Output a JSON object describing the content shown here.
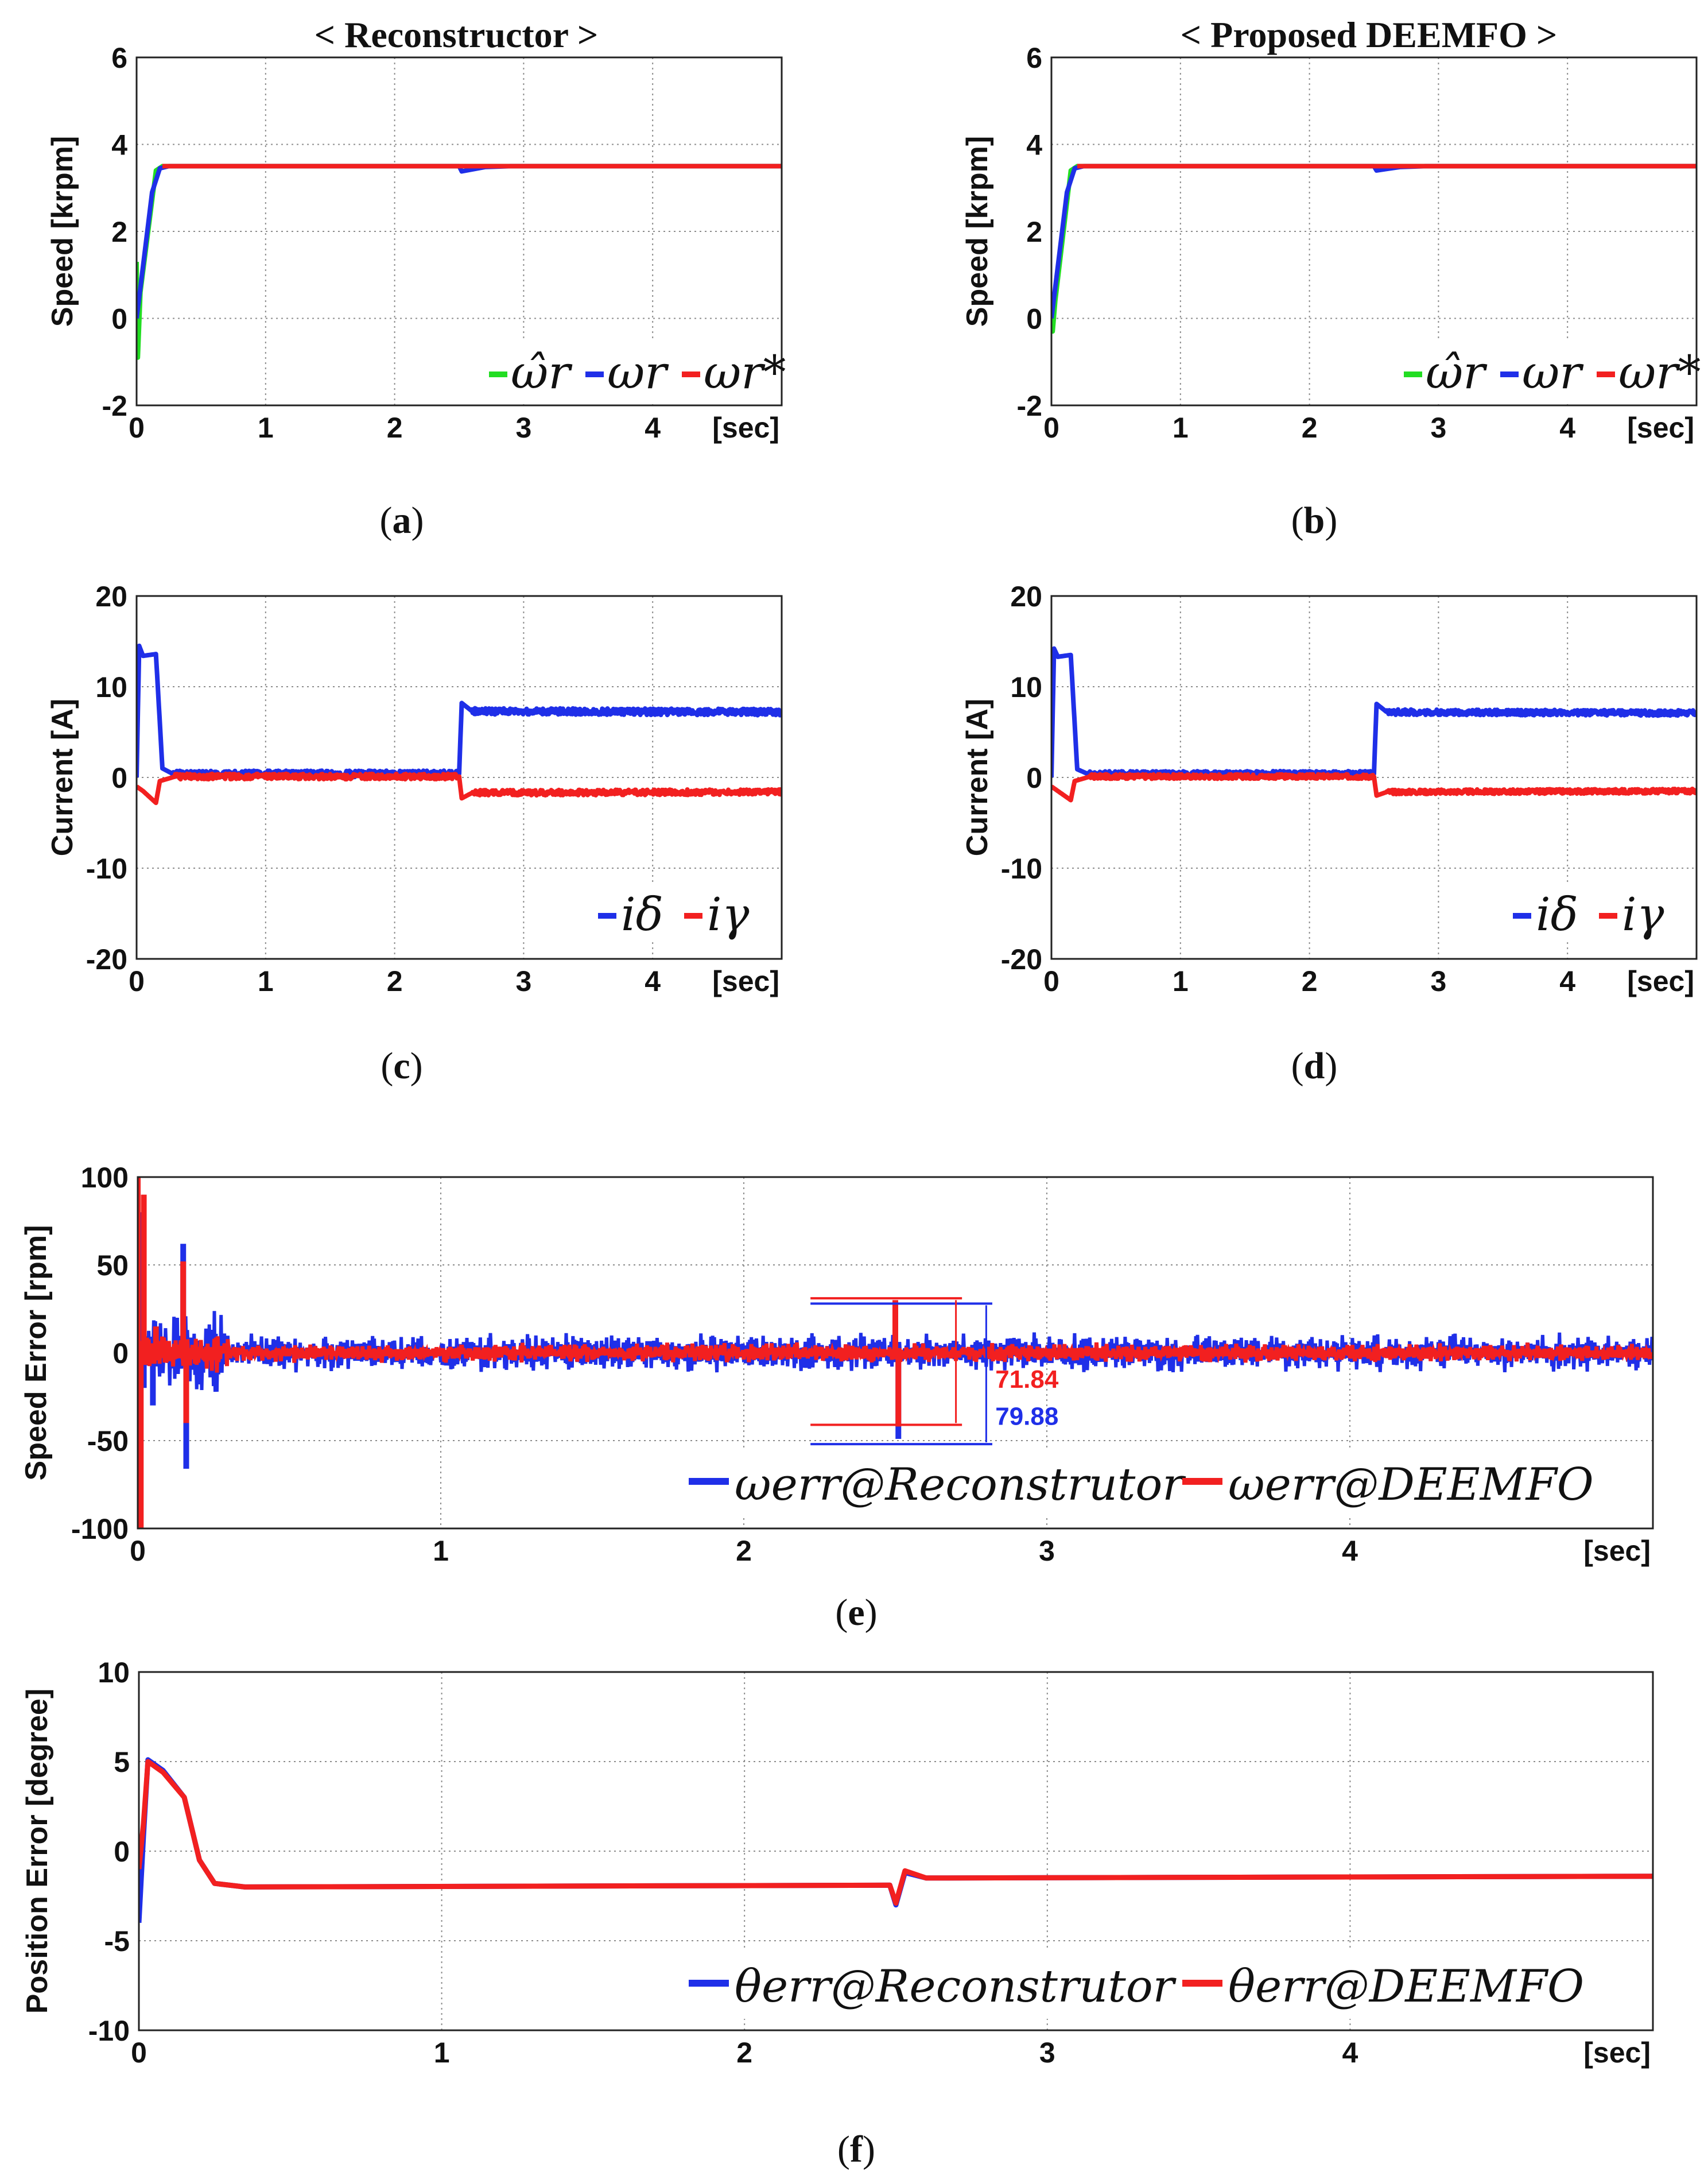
{
  "figure": {
    "title_left": "< Reconstructor >",
    "title_right": "< Proposed DEEMFO >",
    "panel_labels": [
      "a",
      "b",
      "c",
      "d",
      "e",
      "f"
    ],
    "colors": {
      "green": "#22dd22",
      "blue": "#1f2fe8",
      "red": "#f22020",
      "grid": "#8c8c8c",
      "axis": "#222222"
    }
  },
  "chart_data": [
    {
      "id": "a",
      "type": "line",
      "title": "< Reconstructor >",
      "ylabel": "Speed [krpm]",
      "xlabel": "[sec]",
      "xlim": [
        0,
        5
      ],
      "ylim": [
        -2,
        6
      ],
      "xticks": [
        "0",
        "1",
        "2",
        "3",
        "4"
      ],
      "yticks": [
        "-2",
        "0",
        "2",
        "4",
        "6"
      ],
      "legend": [
        "ω̂r",
        "ωr",
        "ωr*"
      ],
      "legend_position": "bottom-right",
      "series": [
        {
          "name": "ω̂r (estimated speed)",
          "color": "green",
          "points": [
            [
              0,
              1.3
            ],
            [
              0.01,
              -0.9
            ],
            [
              0.03,
              0.6
            ],
            [
              0.15,
              3.4
            ],
            [
              0.2,
              3.5
            ],
            [
              5,
              3.5
            ]
          ]
        },
        {
          "name": "ωr (actual speed)",
          "color": "blue",
          "points": [
            [
              0,
              0
            ],
            [
              0.05,
              1.2
            ],
            [
              0.12,
              2.9
            ],
            [
              0.18,
              3.45
            ],
            [
              0.25,
              3.5
            ],
            [
              2.5,
              3.5
            ],
            [
              2.52,
              3.38
            ],
            [
              2.7,
              3.48
            ],
            [
              2.9,
              3.5
            ],
            [
              5,
              3.5
            ]
          ]
        },
        {
          "name": "ωr* (reference speed)",
          "color": "red",
          "points": [
            [
              0.2,
              3.5
            ],
            [
              5,
              3.5
            ]
          ]
        }
      ]
    },
    {
      "id": "b",
      "type": "line",
      "title": "< Proposed DEEMFO >",
      "ylabel": "Speed [krpm]",
      "xlabel": "[sec]",
      "xlim": [
        0,
        5
      ],
      "ylim": [
        -2,
        6
      ],
      "xticks": [
        "0",
        "1",
        "2",
        "3",
        "4"
      ],
      "yticks": [
        "-2",
        "0",
        "2",
        "4",
        "6"
      ],
      "legend": [
        "ω̂r",
        "ωr",
        "ωr*"
      ],
      "legend_position": "bottom-right",
      "series": [
        {
          "name": "ω̂r (estimated speed)",
          "color": "green",
          "points": [
            [
              0,
              0.3
            ],
            [
              0.01,
              -0.3
            ],
            [
              0.03,
              0.4
            ],
            [
              0.15,
              3.4
            ],
            [
              0.2,
              3.5
            ],
            [
              5,
              3.5
            ]
          ]
        },
        {
          "name": "ωr (actual speed)",
          "color": "blue",
          "points": [
            [
              0,
              0
            ],
            [
              0.05,
              1.2
            ],
            [
              0.12,
              2.9
            ],
            [
              0.18,
              3.45
            ],
            [
              0.25,
              3.5
            ],
            [
              2.5,
              3.5
            ],
            [
              2.52,
              3.4
            ],
            [
              2.7,
              3.48
            ],
            [
              2.9,
              3.5
            ],
            [
              5,
              3.5
            ]
          ]
        },
        {
          "name": "ωr* (reference speed)",
          "color": "red",
          "points": [
            [
              0.2,
              3.5
            ],
            [
              5,
              3.5
            ]
          ]
        }
      ]
    },
    {
      "id": "c",
      "type": "line",
      "ylabel": "Current [A]",
      "xlabel": "[sec]",
      "xlim": [
        0,
        5
      ],
      "ylim": [
        -20,
        20
      ],
      "xticks": [
        "0",
        "1",
        "2",
        "3",
        "4"
      ],
      "yticks": [
        "-20",
        "-10",
        "0",
        "10",
        "20"
      ],
      "legend": [
        "iδ",
        "iγ"
      ],
      "legend_position": "bottom-right",
      "series": [
        {
          "name": "iδ",
          "color": "blue",
          "noise": 0.35,
          "points": [
            [
              0,
              0
            ],
            [
              0.02,
              14.5
            ],
            [
              0.05,
              13.4
            ],
            [
              0.15,
              13.6
            ],
            [
              0.2,
              1.0
            ],
            [
              0.28,
              0.4
            ],
            [
              2.5,
              0.4
            ],
            [
              2.52,
              8.2
            ],
            [
              2.6,
              7.3
            ],
            [
              5,
              7.2
            ]
          ]
        },
        {
          "name": "iγ",
          "color": "red",
          "noise": 0.3,
          "points": [
            [
              0,
              -1.0
            ],
            [
              0.05,
              -1.5
            ],
            [
              0.15,
              -2.8
            ],
            [
              0.18,
              -0.4
            ],
            [
              0.3,
              0.1
            ],
            [
              2.5,
              0.1
            ],
            [
              2.52,
              -2.3
            ],
            [
              2.6,
              -1.7
            ],
            [
              5,
              -1.6
            ]
          ]
        }
      ]
    },
    {
      "id": "d",
      "type": "line",
      "ylabel": "Current [A]",
      "xlabel": "[sec]",
      "xlim": [
        0,
        5
      ],
      "ylim": [
        -20,
        20
      ],
      "xticks": [
        "0",
        "1",
        "2",
        "3",
        "4"
      ],
      "yticks": [
        "-20",
        "-10",
        "0",
        "10",
        "20"
      ],
      "legend": [
        "iδ",
        "iγ"
      ],
      "legend_position": "bottom-right",
      "series": [
        {
          "name": "iδ",
          "color": "blue",
          "noise": 0.3,
          "points": [
            [
              0,
              0
            ],
            [
              0.02,
              14.2
            ],
            [
              0.05,
              13.3
            ],
            [
              0.15,
              13.5
            ],
            [
              0.2,
              0.9
            ],
            [
              0.28,
              0.4
            ],
            [
              2.5,
              0.4
            ],
            [
              2.52,
              8.1
            ],
            [
              2.6,
              7.2
            ],
            [
              5,
              7.1
            ]
          ]
        },
        {
          "name": "iγ",
          "color": "red",
          "noise": 0.25,
          "points": [
            [
              0,
              -1.0
            ],
            [
              0.05,
              -1.5
            ],
            [
              0.15,
              -2.5
            ],
            [
              0.18,
              -0.4
            ],
            [
              0.3,
              0.1
            ],
            [
              2.5,
              0.1
            ],
            [
              2.52,
              -2.0
            ],
            [
              2.6,
              -1.6
            ],
            [
              5,
              -1.5
            ]
          ]
        }
      ]
    },
    {
      "id": "e",
      "type": "line",
      "ylabel": "Speed Error [rpm]",
      "xlabel": "[sec]",
      "xlim": [
        0,
        5
      ],
      "ylim": [
        -100,
        100
      ],
      "xticks": [
        "0",
        "1",
        "2",
        "3",
        "4"
      ],
      "yticks": [
        "-100",
        "-50",
        "0",
        "50",
        "100"
      ],
      "legend": [
        "ωerr@Reconstrutor",
        "ωerr@DEEMFO"
      ],
      "legend_position": "bottom-right",
      "annotations": {
        "red_value": "71.84",
        "blue_value": "79.88"
      },
      "series": [
        {
          "name": "ωerr@Reconstrutor",
          "color": "blue",
          "noise_band": 8,
          "spikes": [
            [
              0.0,
              -100
            ],
            [
              0.01,
              80
            ],
            [
              0.02,
              -20
            ],
            [
              0.05,
              -30
            ],
            [
              0.15,
              62
            ],
            [
              0.16,
              -66
            ],
            [
              2.5,
              28
            ],
            [
              2.51,
              -49
            ]
          ]
        },
        {
          "name": "ωerr@DEEMFO",
          "color": "red",
          "noise_band": 5,
          "spikes": [
            [
              0.0,
              100
            ],
            [
              0.01,
              -100
            ],
            [
              0.02,
              90
            ],
            [
              0.06,
              15
            ],
            [
              0.15,
              52
            ],
            [
              0.16,
              -40
            ],
            [
              2.5,
              30
            ],
            [
              2.51,
              -42
            ]
          ]
        }
      ]
    },
    {
      "id": "f",
      "type": "line",
      "ylabel": "Position Error [degree]",
      "xlabel": "[sec]",
      "xlim": [
        0,
        5
      ],
      "ylim": [
        -10,
        10
      ],
      "xticks": [
        "0",
        "1",
        "2",
        "3",
        "4"
      ],
      "yticks": [
        "-10",
        "-5",
        "0",
        "5",
        "10"
      ],
      "legend": [
        "θerr@Reconstrutor",
        "θerr@DEEMFO"
      ],
      "legend_position": "bottom-right",
      "series": [
        {
          "name": "θerr@Reconstrutor",
          "color": "blue",
          "points": [
            [
              0,
              -4.0
            ],
            [
              0.015,
              0.8
            ],
            [
              0.03,
              5.1
            ],
            [
              0.08,
              4.5
            ],
            [
              0.15,
              3.0
            ],
            [
              0.2,
              -0.5
            ],
            [
              0.25,
              -1.8
            ],
            [
              0.35,
              -2.0
            ],
            [
              2.48,
              -1.9
            ],
            [
              2.5,
              -3.0
            ],
            [
              2.53,
              -1.2
            ],
            [
              2.6,
              -1.5
            ],
            [
              5,
              -1.4
            ]
          ]
        },
        {
          "name": "θerr@DEEMFO",
          "color": "red",
          "points": [
            [
              0,
              -1.0
            ],
            [
              0.015,
              1.5
            ],
            [
              0.03,
              5.0
            ],
            [
              0.08,
              4.4
            ],
            [
              0.15,
              3.0
            ],
            [
              0.2,
              -0.5
            ],
            [
              0.25,
              -1.8
            ],
            [
              0.35,
              -2.0
            ],
            [
              2.48,
              -1.9
            ],
            [
              2.5,
              -2.9
            ],
            [
              2.53,
              -1.1
            ],
            [
              2.6,
              -1.5
            ],
            [
              5,
              -1.4
            ]
          ]
        }
      ]
    }
  ]
}
